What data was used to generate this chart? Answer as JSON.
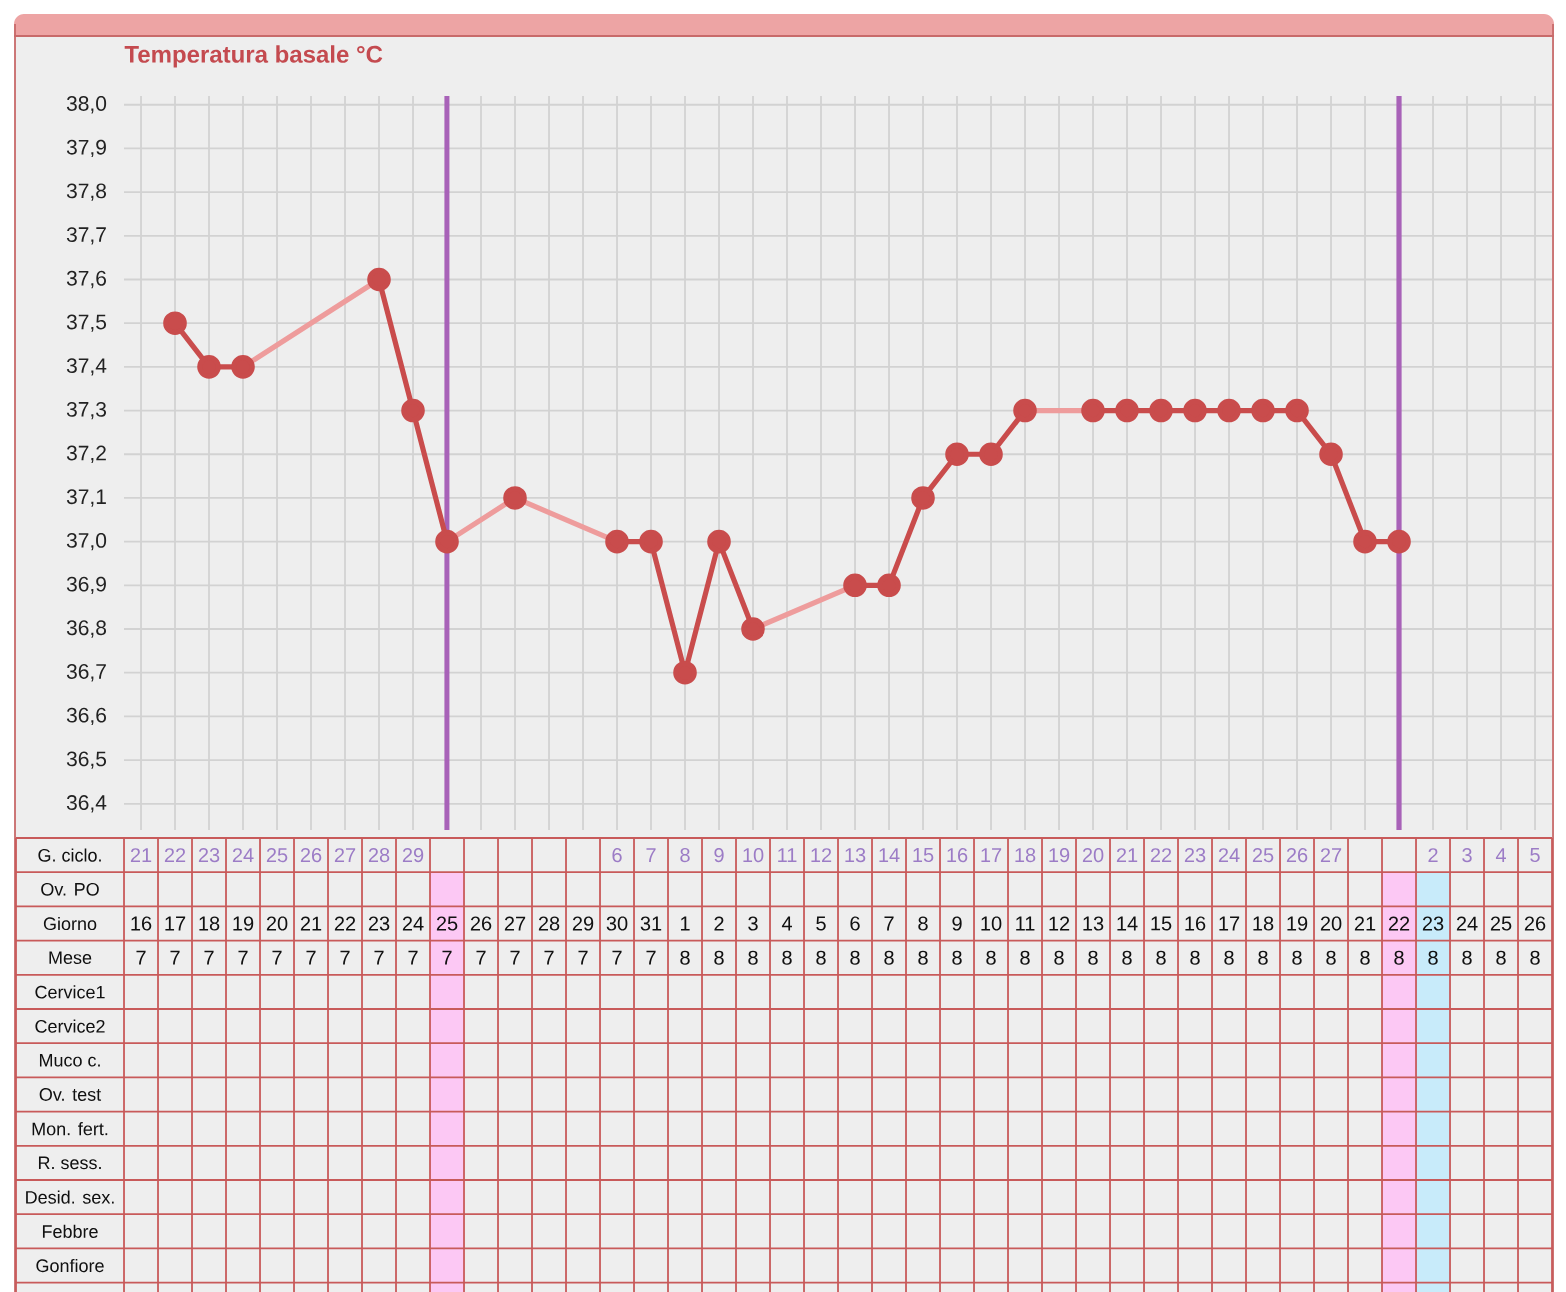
{
  "chart_data": [
    {
      "type": "line",
      "title": "Temperatura basale °C",
      "categories": [
        null,
        null,
        null,
        null,
        null,
        null,
        null,
        null,
        null,
        null,
        null,
        null,
        null,
        null,
        null,
        null,
        null,
        null,
        null,
        null,
        null,
        null,
        null,
        null,
        null,
        null,
        null,
        null,
        null,
        null,
        null,
        null,
        null,
        null,
        null,
        null,
        null,
        null,
        null,
        null,
        null,
        null
      ],
      "tick_labels": "y",
      "grid": true,
      "marker": "circle",
      "ylim": [
        36.34,
        38.02
      ],
      "yticks": [
        {
          "value": 36.4,
          "label": "36,4"
        },
        {
          "value": 36.5,
          "label": "36,5"
        },
        {
          "value": 36.6,
          "label": "36,6"
        },
        {
          "value": 36.7,
          "label": "36,7"
        },
        {
          "value": 36.8,
          "label": "36,8"
        },
        {
          "value": 36.9,
          "label": "36,9"
        },
        {
          "value": 37.0,
          "label": "37,0"
        },
        {
          "value": 37.1,
          "label": "37,1"
        },
        {
          "value": 37.2,
          "label": "37,2"
        },
        {
          "value": 37.3,
          "label": "37,3"
        },
        {
          "value": 37.4,
          "label": "37,4"
        },
        {
          "value": 37.5,
          "label": "37,5"
        },
        {
          "value": 37.6,
          "label": "37,6"
        },
        {
          "value": 37.7,
          "label": "37,7"
        },
        {
          "value": 37.8,
          "label": "37,8"
        },
        {
          "value": 37.9,
          "label": "37,9"
        },
        {
          "value": 38.0,
          "label": "38,0"
        }
      ],
      "series": [
        {
          "color": "#ee9c9c",
          "marker": "none",
          "values": [
            null,
            null,
            null,
            37.4,
            null,
            null,
            null,
            37.6,
            null,
            null,
            null,
            null,
            null,
            null,
            null,
            null,
            null,
            null,
            null,
            null,
            null,
            null,
            null,
            null,
            null,
            null,
            null,
            null,
            null,
            null,
            null,
            null,
            null,
            null,
            null,
            null,
            null,
            null,
            null,
            null,
            null,
            null
          ]
        },
        {
          "color": "#ee9c9c",
          "marker": "none",
          "values": [
            null,
            null,
            null,
            null,
            null,
            null,
            null,
            null,
            null,
            37.0,
            null,
            37.1,
            null,
            null,
            37.0,
            null,
            null,
            null,
            null,
            null,
            null,
            null,
            null,
            null,
            null,
            null,
            null,
            null,
            null,
            null,
            null,
            null,
            null,
            null,
            null,
            null,
            null,
            null,
            null,
            null,
            null,
            null
          ]
        },
        {
          "color": "#ee9c9c",
          "marker": "none",
          "values": [
            null,
            null,
            null,
            null,
            null,
            null,
            null,
            null,
            null,
            null,
            null,
            null,
            null,
            null,
            null,
            null,
            null,
            null,
            36.8,
            null,
            null,
            36.9,
            null,
            null,
            null,
            null,
            null,
            null,
            null,
            null,
            null,
            null,
            null,
            null,
            null,
            null,
            null,
            null,
            null,
            null,
            null,
            null
          ]
        },
        {
          "color": "#ee9c9c",
          "marker": "none",
          "values": [
            null,
            null,
            null,
            null,
            null,
            null,
            null,
            null,
            null,
            null,
            null,
            null,
            null,
            null,
            null,
            null,
            null,
            null,
            null,
            null,
            null,
            null,
            null,
            null,
            null,
            null,
            37.3,
            null,
            37.3,
            null,
            null,
            null,
            null,
            null,
            null,
            null,
            null,
            null,
            null,
            null,
            null,
            null
          ]
        },
        {
          "color": "#c94c4c",
          "values": [
            null,
            37.5,
            37.4,
            37.4,
            null,
            null,
            null,
            37.6,
            37.3,
            37.0,
            null,
            37.1,
            null,
            null,
            37.0,
            37.0,
            36.7,
            37.0,
            36.8,
            null,
            null,
            36.9,
            36.9,
            37.1,
            37.2,
            37.2,
            37.3,
            null,
            37.3,
            37.3,
            37.3,
            37.3,
            37.3,
            37.3,
            37.3,
            37.2,
            37.0,
            37.0,
            null,
            null,
            null,
            null
          ]
        }
      ]
    },
    {
      "type": "heatmap",
      "categories": [
        null,
        null,
        null,
        null,
        null,
        null,
        null,
        null,
        null,
        null,
        null,
        null,
        null,
        null,
        null,
        null,
        null,
        null,
        null,
        null,
        null,
        null,
        null,
        null,
        null,
        null,
        null,
        null,
        null,
        null,
        null,
        null,
        null,
        null,
        null,
        null,
        null,
        null,
        null,
        null,
        null,
        null
      ],
      "y_categories": [
        "G. ciclo.",
        "Ov. PO",
        "Giorno",
        "Mese",
        "Cervice1",
        "Cervice2",
        "Muco c.",
        "Ov. test",
        "Mon. fert.",
        "R. sess.",
        "Desid. sex.",
        "Febbre",
        "Gonfiore"
      ],
      "cells": [
        [
          21,
          22,
          23,
          24,
          25,
          26,
          27,
          28,
          29,
          null,
          null,
          null,
          null,
          null,
          6,
          7,
          8,
          9,
          10,
          11,
          12,
          13,
          14,
          15,
          16,
          17,
          18,
          19,
          20,
          21,
          22,
          23,
          24,
          25,
          26,
          27,
          null,
          null,
          2,
          3,
          4,
          5
        ],
        [
          null,
          null,
          null,
          null,
          null,
          null,
          null,
          null,
          null,
          null,
          null,
          null,
          null,
          null,
          null,
          null,
          null,
          null,
          null,
          null,
          null,
          null,
          null,
          null,
          null,
          null,
          null,
          null,
          null,
          null,
          null,
          null,
          null,
          null,
          null,
          null,
          null,
          null,
          null,
          null,
          null,
          null
        ],
        [
          16,
          17,
          18,
          19,
          20,
          21,
          22,
          23,
          24,
          25,
          26,
          27,
          28,
          29,
          30,
          31,
          1,
          2,
          3,
          4,
          5,
          6,
          7,
          8,
          9,
          10,
          11,
          12,
          13,
          14,
          15,
          16,
          17,
          18,
          19,
          20,
          21,
          22,
          23,
          24,
          25,
          26
        ],
        [
          7,
          7,
          7,
          7,
          7,
          7,
          7,
          7,
          7,
          7,
          7,
          7,
          7,
          7,
          7,
          7,
          8,
          8,
          8,
          8,
          8,
          8,
          8,
          8,
          8,
          8,
          8,
          8,
          8,
          8,
          8,
          8,
          8,
          8,
          8,
          8,
          8,
          8,
          8,
          8,
          8,
          8
        ],
        [
          null,
          null,
          null,
          null,
          null,
          null,
          null,
          null,
          null,
          null,
          null,
          null,
          null,
          null,
          null,
          null,
          null,
          null,
          null,
          null,
          null,
          null,
          null,
          null,
          null,
          null,
          null,
          null,
          null,
          null,
          null,
          null,
          null,
          null,
          null,
          null,
          null,
          null,
          null,
          null,
          null,
          null
        ],
        [
          null,
          null,
          null,
          null,
          null,
          null,
          null,
          null,
          null,
          null,
          null,
          null,
          null,
          null,
          null,
          null,
          null,
          null,
          null,
          null,
          null,
          null,
          null,
          null,
          null,
          null,
          null,
          null,
          null,
          null,
          null,
          null,
          null,
          null,
          null,
          null,
          null,
          null,
          null,
          null,
          null,
          null
        ],
        [
          null,
          null,
          null,
          null,
          null,
          null,
          null,
          null,
          null,
          null,
          null,
          null,
          null,
          null,
          null,
          null,
          null,
          null,
          null,
          null,
          null,
          null,
          null,
          null,
          null,
          null,
          null,
          null,
          null,
          null,
          null,
          null,
          null,
          null,
          null,
          null,
          null,
          null,
          null,
          null,
          null,
          null
        ],
        [
          null,
          null,
          null,
          null,
          null,
          null,
          null,
          null,
          null,
          null,
          null,
          null,
          null,
          null,
          null,
          null,
          null,
          null,
          null,
          null,
          null,
          null,
          null,
          null,
          null,
          null,
          null,
          null,
          null,
          null,
          null,
          null,
          null,
          null,
          null,
          null,
          null,
          null,
          null,
          null,
          null,
          null
        ],
        [
          null,
          null,
          null,
          null,
          null,
          null,
          null,
          null,
          null,
          null,
          null,
          null,
          null,
          null,
          null,
          null,
          null,
          null,
          null,
          null,
          null,
          null,
          null,
          null,
          null,
          null,
          null,
          null,
          null,
          null,
          null,
          null,
          null,
          null,
          null,
          null,
          null,
          null,
          null,
          null,
          null,
          null
        ],
        [
          null,
          null,
          null,
          null,
          null,
          null,
          null,
          null,
          null,
          null,
          null,
          null,
          null,
          null,
          null,
          null,
          null,
          null,
          null,
          null,
          null,
          null,
          null,
          null,
          null,
          null,
          null,
          null,
          null,
          null,
          null,
          null,
          null,
          null,
          null,
          null,
          null,
          null,
          null,
          null,
          null,
          null
        ],
        [
          null,
          null,
          null,
          null,
          null,
          null,
          null,
          null,
          null,
          null,
          null,
          null,
          null,
          null,
          null,
          null,
          null,
          null,
          null,
          null,
          null,
          null,
          null,
          null,
          null,
          null,
          null,
          null,
          null,
          null,
          null,
          null,
          null,
          null,
          null,
          null,
          null,
          null,
          null,
          null,
          null,
          null
        ],
        [
          null,
          null,
          null,
          null,
          null,
          null,
          null,
          null,
          null,
          null,
          null,
          null,
          null,
          null,
          null,
          null,
          null,
          null,
          null,
          null,
          null,
          null,
          null,
          null,
          null,
          null,
          null,
          null,
          null,
          null,
          null,
          null,
          null,
          null,
          null,
          null,
          null,
          null,
          null,
          null,
          null,
          null
        ],
        [
          null,
          null,
          null,
          null,
          null,
          null,
          null,
          null,
          null,
          null,
          null,
          null,
          null,
          null,
          null,
          null,
          null,
          null,
          null,
          null,
          null,
          null,
          null,
          null,
          null,
          null,
          null,
          null,
          null,
          null,
          null,
          null,
          null,
          null,
          null,
          null,
          null,
          null,
          null,
          null,
          null,
          null
        ]
      ],
      "data_labels": true,
      "grid": true,
      "tick_labels": "y"
    }
  ]
}
